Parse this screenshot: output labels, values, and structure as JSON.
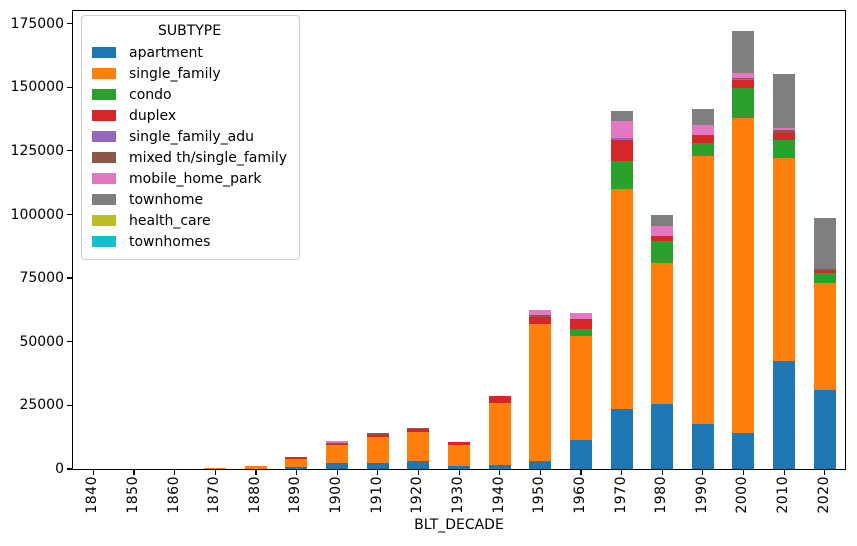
{
  "chart_data": {
    "type": "bar",
    "stacked": true,
    "title": "",
    "xlabel": "BLT_DECADE",
    "ylabel": "",
    "legend_title": "SUBTYPE",
    "legend_position": "upper left",
    "grid": false,
    "ylim": [
      0,
      180000
    ],
    "yticks": [
      0,
      25000,
      50000,
      75000,
      100000,
      125000,
      150000,
      175000
    ],
    "ytick_labels": [
      "0",
      "25000",
      "50000",
      "75000",
      "100000",
      "125000",
      "150000",
      "175000"
    ],
    "categories": [
      "1840",
      "1850",
      "1860",
      "1870",
      "1880",
      "1890",
      "1900",
      "1910",
      "1920",
      "1930",
      "1940",
      "1950",
      "1960",
      "1970",
      "1980",
      "1990",
      "2000",
      "2010",
      "2020"
    ],
    "series": [
      {
        "name": "apartment",
        "color": "#1f77b4",
        "values": [
          0,
          0,
          0,
          0,
          0,
          700,
          2200,
          2500,
          3000,
          1300,
          1700,
          3300,
          11400,
          23400,
          25500,
          17700,
          14200,
          42400,
          31000
        ]
      },
      {
        "name": "single_family",
        "color": "#ff7f0e",
        "values": [
          0,
          0,
          0,
          300,
          1100,
          3400,
          7300,
          10000,
          11400,
          8100,
          24200,
          53600,
          40700,
          86700,
          55300,
          105500,
          123800,
          79900,
          42000
        ]
      },
      {
        "name": "condo",
        "color": "#2ca02c",
        "values": [
          0,
          0,
          0,
          0,
          0,
          0,
          0,
          0,
          0,
          0,
          0,
          0,
          3100,
          10900,
          8800,
          5100,
          11800,
          7200,
          4200
        ]
      },
      {
        "name": "duplex",
        "color": "#d62728",
        "values": [
          0,
          0,
          0,
          0,
          0,
          700,
          600,
          900,
          1300,
          1100,
          2900,
          2700,
          3900,
          8200,
          1800,
          3100,
          3300,
          2400,
          800
        ]
      },
      {
        "name": "single_family_adu",
        "color": "#9467bd",
        "values": [
          0,
          0,
          0,
          0,
          0,
          0,
          0,
          0,
          0,
          0,
          0,
          0,
          0,
          900,
          0,
          0,
          200,
          0,
          0
        ]
      },
      {
        "name": "mixed th/single_family",
        "color": "#8c564b",
        "values": [
          0,
          0,
          0,
          0,
          0,
          0,
          300,
          600,
          600,
          0,
          0,
          900,
          0,
          0,
          0,
          0,
          200,
          1200,
          800
        ]
      },
      {
        "name": "mobile_home_park",
        "color": "#e377c2",
        "values": [
          0,
          0,
          0,
          0,
          0,
          0,
          700,
          0,
          0,
          0,
          0,
          2100,
          2400,
          6700,
          4000,
          3900,
          2200,
          1100,
          0
        ]
      },
      {
        "name": "townhome",
        "color": "#7f7f7f",
        "values": [
          0,
          0,
          0,
          0,
          0,
          0,
          0,
          0,
          0,
          0,
          0,
          0,
          0,
          4000,
          4600,
          6300,
          16600,
          21200,
          20000
        ]
      },
      {
        "name": "health_care",
        "color": "#bcbd22",
        "values": [
          0,
          0,
          0,
          0,
          0,
          0,
          0,
          0,
          0,
          0,
          0,
          0,
          0,
          0,
          0,
          0,
          0,
          0,
          0
        ]
      },
      {
        "name": "townhomes",
        "color": "#17becf",
        "values": [
          0,
          0,
          0,
          0,
          0,
          0,
          0,
          0,
          0,
          0,
          0,
          0,
          0,
          0,
          0,
          0,
          0,
          0,
          0
        ]
      }
    ]
  }
}
